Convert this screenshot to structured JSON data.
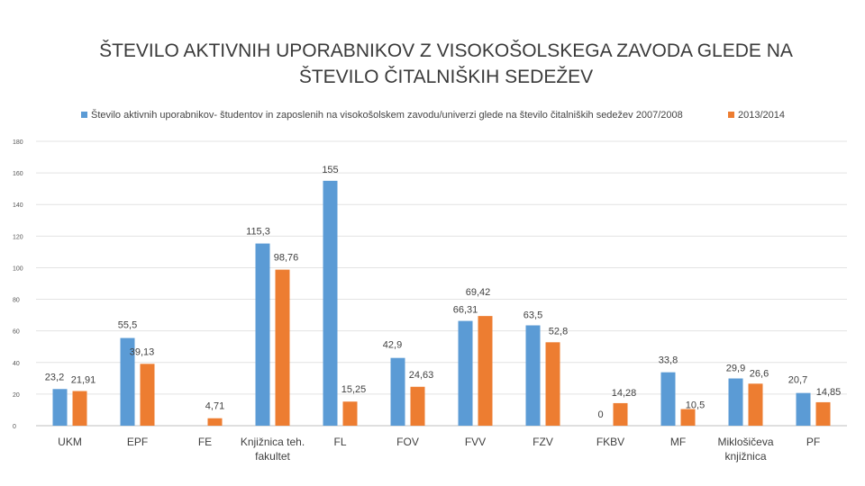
{
  "chart_data": {
    "type": "bar",
    "title_lines": [
      "ŠTEVILO AKTIVNIH UPORABNIKOV Z VISOKOŠOLSKEGA ZAVODA GLEDE NA",
      "ŠTEVILO ČITALNIŠKIH SEDEŽEV"
    ],
    "categories": [
      [
        "UKM"
      ],
      [
        "EPF"
      ],
      [
        "FE"
      ],
      [
        "Knjižnica teh.",
        "fakultet"
      ],
      [
        "FL"
      ],
      [
        "FOV"
      ],
      [
        "FVV"
      ],
      [
        "FZV"
      ],
      [
        "FKBV"
      ],
      [
        "MF"
      ],
      [
        "Miklošičeva",
        "knjižnica"
      ],
      [
        "PF"
      ]
    ],
    "series": [
      {
        "name": "Število aktivnih uporabnikov- študentov in zaposlenih na visokošolskem zavodu/univerzi glede na število čitalniških sedežev 2007/2008",
        "color": "#5b9bd5",
        "values": [
          23.2,
          55.5,
          null,
          115.3,
          155,
          42.9,
          66.31,
          63.5,
          null,
          33.8,
          29.9,
          20.7
        ],
        "labels": [
          "23,2",
          "55,5",
          "",
          "115,3",
          "155",
          "42,9",
          "66,31",
          "63,5",
          "",
          "33,8",
          "29,9",
          "20,7"
        ]
      },
      {
        "name": "2013/2014",
        "color": "#ed7d31",
        "values": [
          21.91,
          39.13,
          4.71,
          98.76,
          15.25,
          24.63,
          69.42,
          52.8,
          14.28,
          10.5,
          26.6,
          14.85
        ],
        "labels": [
          "21,91",
          "39,13",
          "4,71",
          "98,76",
          "15,25",
          "24,63",
          "69,42",
          "52,8",
          "14,28",
          "10,5",
          "26,6",
          "14,85"
        ]
      }
    ],
    "extra_labels": [
      "0"
    ],
    "y_ticks": [
      "0",
      "20",
      "40",
      "60",
      "80",
      "100",
      "120",
      "140",
      "160",
      "180"
    ],
    "ylim": [
      0,
      180
    ],
    "grid": true,
    "legend": "top"
  }
}
